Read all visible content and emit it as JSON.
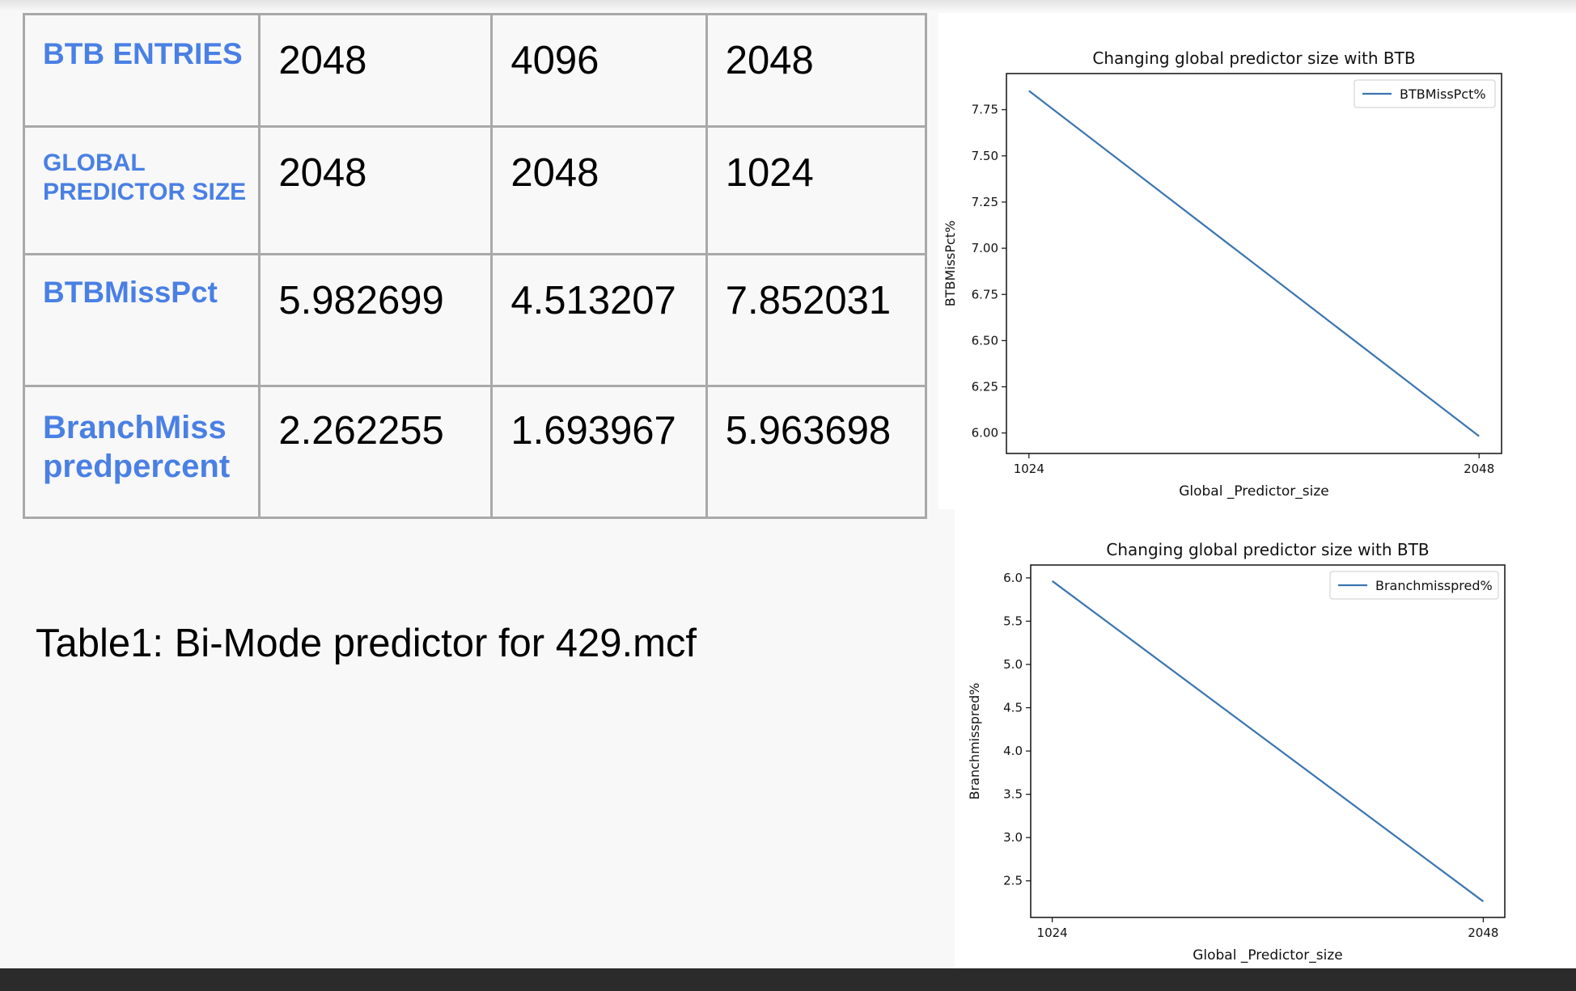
{
  "table": {
    "rows": [
      {
        "label": "BTB ENTRIES",
        "values": [
          "2048",
          "4096",
          "2048"
        ]
      },
      {
        "label": "GLOBAL PREDICTOR SIZE",
        "values": [
          "2048",
          "2048",
          "1024"
        ]
      },
      {
        "label": "BTBMissPct",
        "values": [
          "5.982699",
          "4.513207",
          "7.852031"
        ]
      },
      {
        "label": "BranchMiss predpercent",
        "values": [
          "2.262255",
          "1.693967",
          "5.963698"
        ]
      }
    ],
    "header_color": "#4a80e4"
  },
  "caption": "Table1: Bi-Mode predictor for 429.mcf",
  "chart_data": [
    {
      "type": "line",
      "title": "Changing global predictor size with BTB",
      "xlabel": "Global _Predictor_size",
      "ylabel": "BTBMissPct%",
      "x": [
        1024,
        2048
      ],
      "x_tick_labels": [
        "1024",
        "2048"
      ],
      "series": [
        {
          "name": "BTBMissPct%",
          "values": [
            7.852031,
            5.982699
          ],
          "color": "#3a75b0"
        }
      ],
      "y_ticks": [
        6.0,
        6.25,
        6.5,
        6.75,
        7.0,
        7.25,
        7.5,
        7.75
      ],
      "y_tick_labels": [
        "6.00",
        "6.25",
        "6.50",
        "6.75",
        "7.00",
        "7.25",
        "7.50",
        "7.75"
      ],
      "legend": "top-right",
      "grid": false
    },
    {
      "type": "line",
      "title": "Changing global predictor size with BTB",
      "xlabel": "Global _Predictor_size",
      "ylabel": "Branchmisspred%",
      "x": [
        1024,
        2048
      ],
      "x_tick_labels": [
        "1024",
        "2048"
      ],
      "series": [
        {
          "name": "Branchmisspred%",
          "values": [
            5.963698,
            2.262255
          ],
          "color": "#3a75b0"
        }
      ],
      "y_ticks": [
        2.5,
        3.0,
        3.5,
        4.0,
        4.5,
        5.0,
        5.5,
        6.0
      ],
      "y_tick_labels": [
        "2.5",
        "3.0",
        "3.5",
        "4.0",
        "4.5",
        "5.0",
        "5.5",
        "6.0"
      ],
      "legend": "top-right",
      "grid": false
    }
  ]
}
